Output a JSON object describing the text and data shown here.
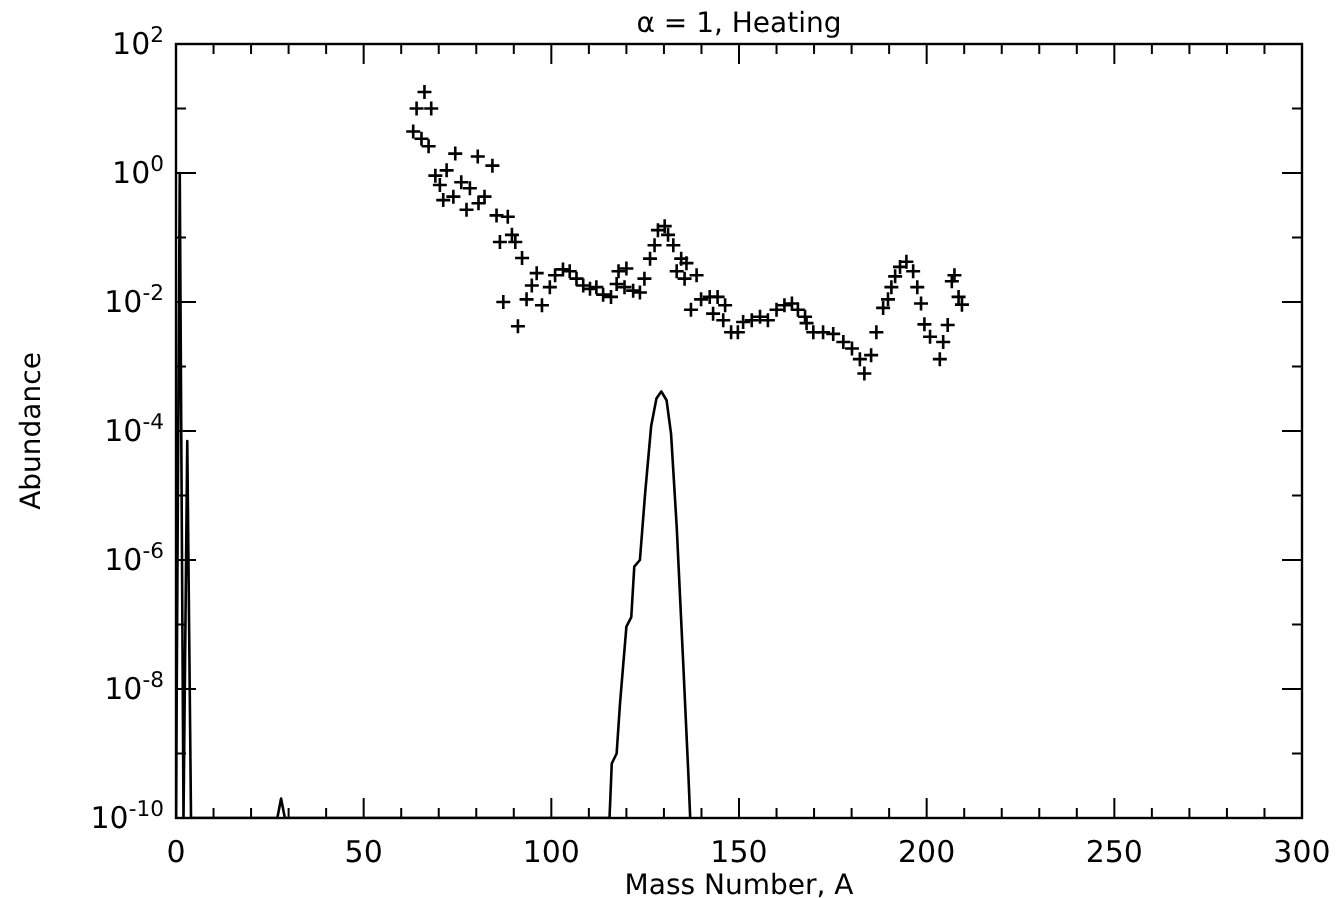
{
  "chart_data": {
    "type": "scatter",
    "title": "α = 1, Heating",
    "xlabel": "Mass Number, A",
    "ylabel": "Abundance",
    "log": "y",
    "grid": false,
    "xlim": [
      0,
      300
    ],
    "xticks": [
      0,
      {
        "value": 10,
        "label": null
      },
      {
        "value": 20,
        "label": null
      },
      {
        "value": 30,
        "label": null
      },
      {
        "value": 40,
        "label": null
      },
      50,
      {
        "value": 60,
        "label": null
      },
      {
        "value": 70,
        "label": null
      },
      {
        "value": 80,
        "label": null
      },
      {
        "value": 90,
        "label": null
      },
      100,
      {
        "value": 110,
        "label": null
      },
      {
        "value": 120,
        "label": null
      },
      {
        "value": 130,
        "label": null
      },
      {
        "value": 140,
        "label": null
      },
      150,
      {
        "value": 160,
        "label": null
      },
      {
        "value": 170,
        "label": null
      },
      {
        "value": 180,
        "label": null
      },
      {
        "value": 190,
        "label": null
      },
      200,
      {
        "value": 210,
        "label": null
      },
      {
        "value": 220,
        "label": null
      },
      {
        "value": 230,
        "label": null
      },
      {
        "value": 240,
        "label": null
      },
      250,
      {
        "value": 260,
        "label": null
      },
      {
        "value": 270,
        "label": null
      },
      {
        "value": 280,
        "label": null
      },
      {
        "value": 290,
        "label": null
      },
      300
    ],
    "ylim": [
      1e-10,
      100
    ],
    "yticks": [
      {
        "value": 1e-10,
        "label": "10$^{-10}$"
      },
      {
        "value": 1e-09,
        "label": null
      },
      {
        "value": 1e-08,
        "label": "10$^{-8}$"
      },
      {
        "value": 1e-07,
        "label": null
      },
      {
        "value": 1e-06,
        "label": "10$^{-6}$"
      },
      {
        "value": 1e-05,
        "label": null
      },
      {
        "value": 0.0001,
        "label": "10$^{-4}$"
      },
      {
        "value": 0.001,
        "label": null
      },
      {
        "value": 0.01,
        "label": "10$^{-2}$"
      },
      {
        "value": 0.1,
        "label": null
      },
      {
        "value": 1,
        "label": "10$^{0}$"
      },
      {
        "value": 10,
        "label": null
      },
      {
        "value": 100,
        "label": "10$^{2}$"
      }
    ],
    "series": [
      {
        "marker": "cross",
        "color": "#000000",
        "x": [
          66.2,
          64.1,
          68,
          63.2,
          65.4,
          67.3,
          74.4,
          80.4,
          84.3,
          69.1,
          72.1,
          70.3,
          76,
          78.3,
          71.2,
          73.9,
          82.2,
          77.4,
          80.6,
          85.4,
          88.4,
          89.5,
          86.3,
          90.4,
          92.2,
          87.2,
          91.1,
          93.4,
          94.8,
          96.1,
          97.5,
          99.6,
          101,
          103.1,
          104.9,
          106.7,
          108.5,
          110.3,
          112,
          113.8,
          115.9,
          117.9,
          120,
          117.4,
          119.5,
          121.8,
          123.6,
          124.8,
          126.3,
          127.5,
          128.4,
          130.2,
          131.1,
          132.5,
          133.4,
          134.6,
          136,
          135.5,
          138.7,
          137.2,
          139.9,
          142.2,
          144.3,
          146.3,
          143.1,
          145.8,
          147.9,
          149.7,
          151.1,
          153.4,
          155.6,
          157.7,
          160,
          162.1,
          164.1,
          165.7,
          167.6,
          168,
          169.8,
          172.4,
          175.1,
          177.8,
          180.1,
          182.2,
          183.4,
          185.2,
          186.6,
          188.4,
          189.7,
          190.6,
          191.6,
          192.9,
          194.6,
          196.4,
          197.5,
          198.5,
          199.4,
          200.9,
          203.5,
          204.4,
          205.6,
          206.7,
          207.4,
          208.5,
          209.4
        ],
        "values": [
          18,
          10,
          10,
          4.4,
          3.4,
          2.6,
          2,
          1.8,
          1.3,
          0.91,
          1.1,
          0.65,
          0.72,
          0.58,
          0.38,
          0.43,
          0.43,
          0.27,
          0.34,
          0.22,
          0.21,
          0.11,
          0.085,
          0.085,
          0.048,
          0.01,
          0.0042,
          0.011,
          0.018,
          0.028,
          0.0089,
          0.017,
          0.026,
          0.032,
          0.03,
          0.023,
          0.018,
          0.016,
          0.017,
          0.013,
          0.012,
          0.03,
          0.033,
          0.019,
          0.017,
          0.015,
          0.014,
          0.023,
          0.047,
          0.076,
          0.13,
          0.15,
          0.11,
          0.076,
          0.03,
          0.047,
          0.04,
          0.023,
          0.026,
          0.0076,
          0.011,
          0.012,
          0.012,
          0.0089,
          0.0066,
          0.0052,
          0.0034,
          0.0034,
          0.0049,
          0.0052,
          0.0059,
          0.0052,
          0.0076,
          0.0089,
          0.0095,
          0.0076,
          0.0059,
          0.0047,
          0.0034,
          0.0034,
          0.0032,
          0.0024,
          0.0019,
          0.0013,
          0.00078,
          0.0015,
          0.0034,
          0.0081,
          0.011,
          0.017,
          0.025,
          0.035,
          0.042,
          0.03,
          0.017,
          0.0095,
          0.0045,
          0.0029,
          0.0013,
          0.0024,
          0.0044,
          0.021,
          0.026,
          0.012,
          0.0091
        ]
      },
      {
        "type": "line",
        "marker": "none",
        "line_style": "solid",
        "color": "#000000",
        "x": [
          0,
          1,
          2,
          3,
          4,
          27,
          28,
          29,
          115.5,
          116.1,
          117.4,
          118.3,
          120,
          121.3,
          122.1,
          123.6,
          125,
          126.6,
          128,
          129.3,
          130.7,
          131.9,
          133.4,
          135.1,
          136.5,
          137
        ],
        "values": [
          1e-10,
          1,
          1e-10,
          7e-05,
          1e-10,
          1e-10,
          2e-10,
          1e-10,
          1e-10,
          7e-10,
          1e-09,
          6e-09,
          9.3e-08,
          1.3e-07,
          7.9e-07,
          1e-06,
          1.1e-05,
          0.00012,
          0.00032,
          0.00041,
          0.0003,
          9e-05,
          3.3e-06,
          2.8e-08,
          4.9e-10,
          1e-10
        ]
      }
    ]
  }
}
